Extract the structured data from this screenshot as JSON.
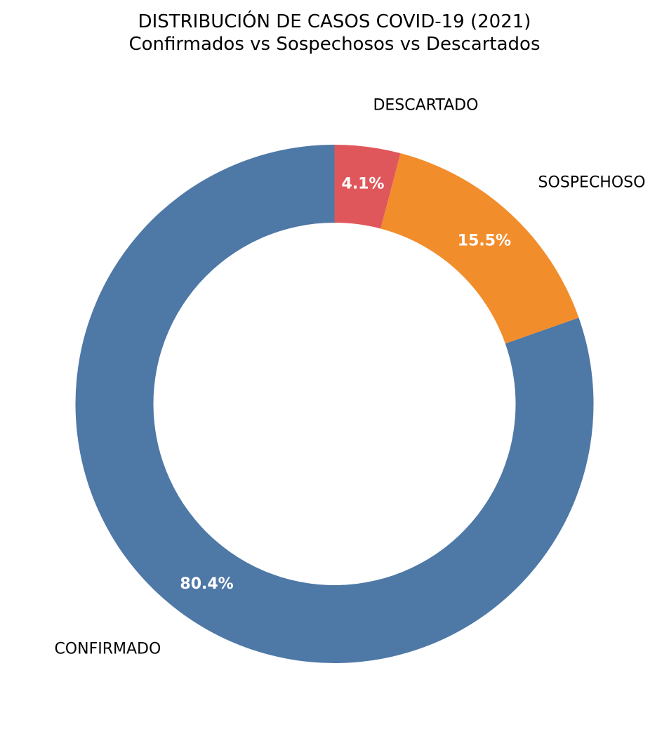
{
  "chart_data": {
    "type": "pie",
    "donut": true,
    "title": "DISTRIBUCIÓN DE CASOS COVID-19 (2021)",
    "subtitle": "Confirmados vs Sospechosos vs Descartados",
    "start_angle_deg": 90,
    "direction": "counterclockwise",
    "slices": [
      {
        "label": "CONFIRMADO",
        "value": 80.4,
        "pct_label": "80.4%",
        "color": "#4e78a6"
      },
      {
        "label": "SOSPECHOSO",
        "value": 15.5,
        "pct_label": "15.5%",
        "color": "#f28d2c"
      },
      {
        "label": "DESCARTADO",
        "value": 4.1,
        "pct_label": "4.1%",
        "color": "#e0575b"
      }
    ]
  }
}
